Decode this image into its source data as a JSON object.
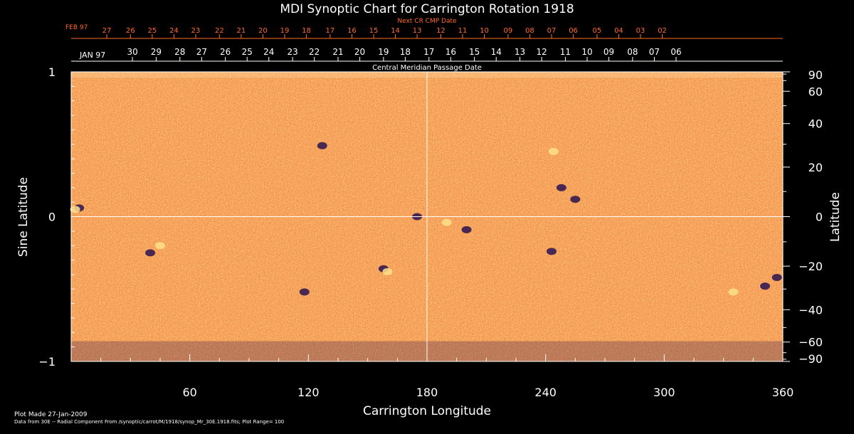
{
  "chart_data": {
    "type": "heatmap",
    "title": "MDI Synoptic Chart for Carrington Rotation 1918",
    "xlabel": "Carrington Longitude",
    "ylabel_left": "Sine Latitude",
    "ylabel_right": "Latitude",
    "xlim": [
      0,
      360
    ],
    "ylim": [
      -1,
      1
    ],
    "x_ticks": [
      60,
      120,
      180,
      240,
      300,
      360
    ],
    "y_ticks_left": [
      {
        "v": 1,
        "label": "1"
      },
      {
        "v": 0,
        "label": "0"
      },
      {
        "v": -1,
        "label": "−1"
      }
    ],
    "y_ticks_right": [
      90,
      60,
      40,
      20,
      0,
      -20,
      -40,
      -60,
      -90
    ],
    "grid": "crosshair at longitude 180 and sine latitude 0",
    "colors": {
      "background": "#e8541a",
      "bright": "#ffe08a",
      "dark": "#2a1250",
      "axis": "#ffffff",
      "top_axis": "#ff6a2a"
    },
    "top_axis": {
      "title": "Next CR CMP Date",
      "month_label": "FEB 97",
      "ticks": [
        {
          "lon": 18,
          "label": "27"
        },
        {
          "lon": 30,
          "label": "26"
        },
        {
          "lon": 41,
          "label": "25"
        },
        {
          "lon": 52,
          "label": "24"
        },
        {
          "lon": 63,
          "label": "23"
        },
        {
          "lon": 75,
          "label": "22"
        },
        {
          "lon": 86,
          "label": "21"
        },
        {
          "lon": 97,
          "label": "20"
        },
        {
          "lon": 108,
          "label": "19"
        },
        {
          "lon": 119,
          "label": "18"
        },
        {
          "lon": 131,
          "label": "17"
        },
        {
          "lon": 142,
          "label": "16"
        },
        {
          "lon": 153,
          "label": "15"
        },
        {
          "lon": 164,
          "label": "14"
        },
        {
          "lon": 175,
          "label": "13"
        },
        {
          "lon": 187,
          "label": "12"
        },
        {
          "lon": 198,
          "label": "11"
        },
        {
          "lon": 209,
          "label": "10"
        },
        {
          "lon": 221,
          "label": "09"
        },
        {
          "lon": 232,
          "label": "08"
        },
        {
          "lon": 243,
          "label": "07"
        },
        {
          "lon": 254,
          "label": "06"
        },
        {
          "lon": 266,
          "label": "05"
        },
        {
          "lon": 277,
          "label": "04"
        },
        {
          "lon": 288,
          "label": "03"
        },
        {
          "lon": 299,
          "label": "02"
        }
      ]
    },
    "middle_axis": {
      "title": "Central Meridian Passage Date",
      "month_label": "JAN 97",
      "ticks": [
        {
          "lon": 31,
          "label": "30"
        },
        {
          "lon": 43,
          "label": "29"
        },
        {
          "lon": 55,
          "label": "28"
        },
        {
          "lon": 66,
          "label": "27"
        },
        {
          "lon": 78,
          "label": "26"
        },
        {
          "lon": 89,
          "label": "25"
        },
        {
          "lon": 100,
          "label": "24"
        },
        {
          "lon": 112,
          "label": "23"
        },
        {
          "lon": 123,
          "label": "22"
        },
        {
          "lon": 135,
          "label": "21"
        },
        {
          "lon": 146,
          "label": "20"
        },
        {
          "lon": 158,
          "label": "19"
        },
        {
          "lon": 169,
          "label": "18"
        },
        {
          "lon": 181,
          "label": "17"
        },
        {
          "lon": 192,
          "label": "16"
        },
        {
          "lon": 204,
          "label": "15"
        },
        {
          "lon": 215,
          "label": "14"
        },
        {
          "lon": 227,
          "label": "13"
        },
        {
          "lon": 238,
          "label": "12"
        },
        {
          "lon": 250,
          "label": "11"
        },
        {
          "lon": 261,
          "label": "10"
        },
        {
          "lon": 272,
          "label": "09"
        },
        {
          "lon": 284,
          "label": "08"
        },
        {
          "lon": 295,
          "label": "07"
        },
        {
          "lon": 306,
          "label": "06"
        }
      ]
    },
    "features": [
      {
        "lon": 4,
        "sinlat": 0.06,
        "polarity": "dark"
      },
      {
        "lon": 2,
        "sinlat": 0.05,
        "polarity": "bright"
      },
      {
        "lon": 40,
        "sinlat": -0.25,
        "polarity": "dark"
      },
      {
        "lon": 45,
        "sinlat": -0.2,
        "polarity": "bright"
      },
      {
        "lon": 118,
        "sinlat": -0.52,
        "polarity": "dark"
      },
      {
        "lon": 127,
        "sinlat": 0.49,
        "polarity": "dark"
      },
      {
        "lon": 158,
        "sinlat": -0.36,
        "polarity": "dark"
      },
      {
        "lon": 160,
        "sinlat": -0.38,
        "polarity": "bright"
      },
      {
        "lon": 175,
        "sinlat": 0.0,
        "polarity": "dark"
      },
      {
        "lon": 190,
        "sinlat": -0.04,
        "polarity": "bright"
      },
      {
        "lon": 200,
        "sinlat": -0.09,
        "polarity": "dark"
      },
      {
        "lon": 255,
        "sinlat": 0.12,
        "polarity": "dark"
      },
      {
        "lon": 248,
        "sinlat": 0.2,
        "polarity": "dark"
      },
      {
        "lon": 244,
        "sinlat": 0.45,
        "polarity": "bright"
      },
      {
        "lon": 243,
        "sinlat": -0.24,
        "polarity": "dark"
      },
      {
        "lon": 335,
        "sinlat": -0.52,
        "polarity": "bright"
      },
      {
        "lon": 351,
        "sinlat": -0.48,
        "polarity": "dark"
      },
      {
        "lon": 357,
        "sinlat": -0.42,
        "polarity": "dark"
      }
    ]
  },
  "footer": {
    "plot_made": "Plot Made 27-Jan-2009",
    "data_source": "Data from 30E -- Radial Component From /synoptic/carrot/M/1918/synop_Mr_30E.1918.fits; Plot Range= 100"
  }
}
